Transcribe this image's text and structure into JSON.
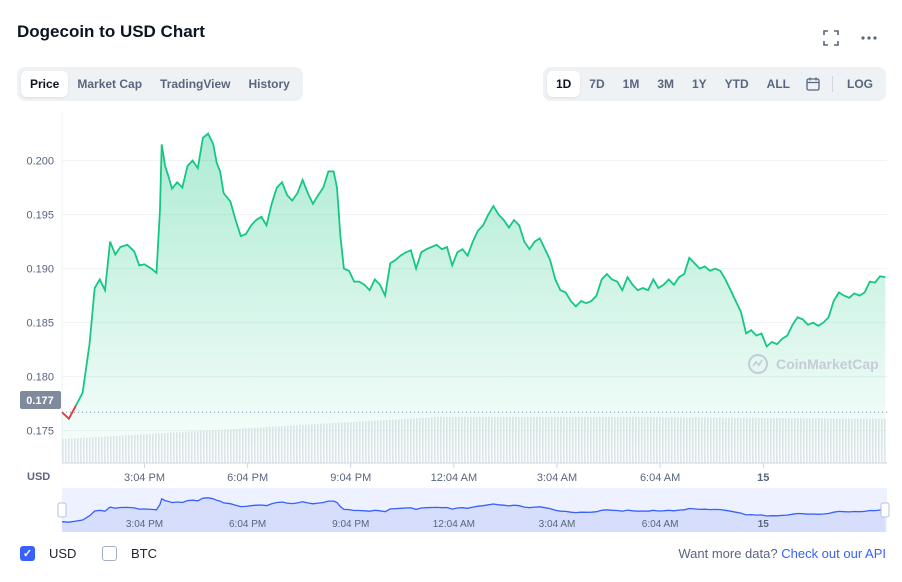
{
  "title": "Dogecoin to USD Chart",
  "icons": {
    "fullscreen": "fullscreen-icon",
    "more": "more-icon",
    "calendar": "calendar-icon"
  },
  "left_tabs": [
    {
      "label": "Price",
      "active": true
    },
    {
      "label": "Market Cap",
      "active": false
    },
    {
      "label": "TradingView",
      "active": false
    },
    {
      "label": "History",
      "active": false
    }
  ],
  "range_tabs": [
    {
      "label": "1D",
      "active": true
    },
    {
      "label": "7D",
      "active": false
    },
    {
      "label": "1M",
      "active": false
    },
    {
      "label": "3M",
      "active": false
    },
    {
      "label": "1Y",
      "active": false
    },
    {
      "label": "YTD",
      "active": false
    },
    {
      "label": "ALL",
      "active": false
    }
  ],
  "log_label": "LOG",
  "watermark": "CoinMarketCap",
  "colors": {
    "line": "#16c784",
    "nav_line": "#3861fb",
    "accent": "#3861fb",
    "price_tag_bg": "#808a9d"
  },
  "chart_data": {
    "type": "area",
    "ylabel": "USD",
    "y_ticks": [
      "0.200",
      "0.195",
      "0.190",
      "0.185",
      "0.180",
      "0.175"
    ],
    "ylim": [
      0.172,
      0.2045
    ],
    "x_tick_labels": [
      "3:04 PM",
      "6:04 PM",
      "9:04 PM",
      "12:04 AM",
      "3:04 AM",
      "6:04 AM",
      "15"
    ],
    "x_tick_hours": [
      2,
      5,
      8,
      11,
      14,
      17,
      20
    ],
    "x_range_hours": [
      -0.4,
      23.6
    ],
    "current_price": "0.177",
    "grid": true,
    "series": [
      {
        "values": [
          [
            -0.4,
            0.1767
          ],
          [
            -0.2,
            0.1761
          ],
          [
            0.0,
            0.1773
          ],
          [
            0.2,
            0.1785
          ],
          [
            0.4,
            0.183
          ],
          [
            0.55,
            0.1882
          ],
          [
            0.7,
            0.189
          ],
          [
            0.85,
            0.188
          ],
          [
            1.0,
            0.1925
          ],
          [
            1.15,
            0.1913
          ],
          [
            1.3,
            0.192
          ],
          [
            1.5,
            0.1922
          ],
          [
            1.7,
            0.1916
          ],
          [
            1.85,
            0.1903
          ],
          [
            2.0,
            0.1904
          ],
          [
            2.2,
            0.19
          ],
          [
            2.35,
            0.1896
          ],
          [
            2.45,
            0.1955
          ],
          [
            2.5,
            0.2015
          ],
          [
            2.6,
            0.1995
          ],
          [
            2.7,
            0.1985
          ],
          [
            2.8,
            0.1974
          ],
          [
            2.95,
            0.198
          ],
          [
            3.1,
            0.1975
          ],
          [
            3.25,
            0.1995
          ],
          [
            3.4,
            0.2
          ],
          [
            3.55,
            0.1993
          ],
          [
            3.7,
            0.2021
          ],
          [
            3.85,
            0.2025
          ],
          [
            4.0,
            0.2015
          ],
          [
            4.1,
            0.1998
          ],
          [
            4.2,
            0.199
          ],
          [
            4.3,
            0.197
          ],
          [
            4.5,
            0.1962
          ],
          [
            4.65,
            0.1945
          ],
          [
            4.8,
            0.193
          ],
          [
            4.95,
            0.1932
          ],
          [
            5.1,
            0.194
          ],
          [
            5.25,
            0.1945
          ],
          [
            5.4,
            0.1948
          ],
          [
            5.55,
            0.194
          ],
          [
            5.7,
            0.196
          ],
          [
            5.85,
            0.1975
          ],
          [
            6.0,
            0.198
          ],
          [
            6.15,
            0.1968
          ],
          [
            6.3,
            0.1963
          ],
          [
            6.45,
            0.197
          ],
          [
            6.6,
            0.1982
          ],
          [
            6.75,
            0.197
          ],
          [
            6.9,
            0.196
          ],
          [
            7.05,
            0.1968
          ],
          [
            7.2,
            0.1975
          ],
          [
            7.35,
            0.199
          ],
          [
            7.5,
            0.199
          ],
          [
            7.6,
            0.1975
          ],
          [
            7.7,
            0.193
          ],
          [
            7.8,
            0.19
          ],
          [
            7.95,
            0.1898
          ],
          [
            8.1,
            0.1888
          ],
          [
            8.25,
            0.1888
          ],
          [
            8.4,
            0.1885
          ],
          [
            8.55,
            0.188
          ],
          [
            8.7,
            0.189
          ],
          [
            8.85,
            0.1885
          ],
          [
            9.0,
            0.1875
          ],
          [
            9.15,
            0.1905
          ],
          [
            9.3,
            0.1908
          ],
          [
            9.45,
            0.1912
          ],
          [
            9.6,
            0.1915
          ],
          [
            9.75,
            0.1917
          ],
          [
            9.9,
            0.19
          ],
          [
            10.05,
            0.1915
          ],
          [
            10.2,
            0.1918
          ],
          [
            10.35,
            0.192
          ],
          [
            10.5,
            0.1922
          ],
          [
            10.65,
            0.1918
          ],
          [
            10.8,
            0.192
          ],
          [
            10.95,
            0.1903
          ],
          [
            11.1,
            0.1915
          ],
          [
            11.25,
            0.1918
          ],
          [
            11.4,
            0.1912
          ],
          [
            11.55,
            0.1925
          ],
          [
            11.7,
            0.1935
          ],
          [
            11.85,
            0.194
          ],
          [
            12.0,
            0.195
          ],
          [
            12.15,
            0.1958
          ],
          [
            12.3,
            0.195
          ],
          [
            12.45,
            0.1945
          ],
          [
            12.6,
            0.1938
          ],
          [
            12.75,
            0.1945
          ],
          [
            12.9,
            0.194
          ],
          [
            13.05,
            0.1925
          ],
          [
            13.2,
            0.1918
          ],
          [
            13.35,
            0.1925
          ],
          [
            13.5,
            0.1928
          ],
          [
            13.65,
            0.1918
          ],
          [
            13.8,
            0.1908
          ],
          [
            13.95,
            0.189
          ],
          [
            14.1,
            0.188
          ],
          [
            14.25,
            0.1878
          ],
          [
            14.4,
            0.187
          ],
          [
            14.55,
            0.1865
          ],
          [
            14.7,
            0.187
          ],
          [
            14.85,
            0.1868
          ],
          [
            15.0,
            0.187
          ],
          [
            15.15,
            0.1875
          ],
          [
            15.3,
            0.189
          ],
          [
            15.45,
            0.1895
          ],
          [
            15.6,
            0.189
          ],
          [
            15.75,
            0.1888
          ],
          [
            15.9,
            0.188
          ],
          [
            16.05,
            0.1892
          ],
          [
            16.2,
            0.1885
          ],
          [
            16.35,
            0.188
          ],
          [
            16.5,
            0.1882
          ],
          [
            16.65,
            0.188
          ],
          [
            16.8,
            0.189
          ],
          [
            16.95,
            0.1882
          ],
          [
            17.1,
            0.1885
          ],
          [
            17.25,
            0.189
          ],
          [
            17.4,
            0.1885
          ],
          [
            17.55,
            0.1892
          ],
          [
            17.7,
            0.1895
          ],
          [
            17.85,
            0.191
          ],
          [
            18.0,
            0.1905
          ],
          [
            18.15,
            0.19
          ],
          [
            18.3,
            0.1902
          ],
          [
            18.45,
            0.1898
          ],
          [
            18.6,
            0.19
          ],
          [
            18.75,
            0.1898
          ],
          [
            18.9,
            0.189
          ],
          [
            19.05,
            0.188
          ],
          [
            19.2,
            0.187
          ],
          [
            19.35,
            0.186
          ],
          [
            19.5,
            0.184
          ],
          [
            19.65,
            0.1843
          ],
          [
            19.8,
            0.1838
          ],
          [
            19.95,
            0.184
          ],
          [
            20.1,
            0.1828
          ],
          [
            20.25,
            0.1832
          ],
          [
            20.4,
            0.183
          ],
          [
            20.55,
            0.1835
          ],
          [
            20.7,
            0.1838
          ],
          [
            20.85,
            0.1848
          ],
          [
            21.0,
            0.1855
          ],
          [
            21.15,
            0.1853
          ],
          [
            21.3,
            0.1848
          ],
          [
            21.45,
            0.185
          ],
          [
            21.6,
            0.1847
          ],
          [
            21.75,
            0.185
          ],
          [
            21.9,
            0.1855
          ],
          [
            22.05,
            0.187
          ],
          [
            22.2,
            0.1878
          ],
          [
            22.35,
            0.1875
          ],
          [
            22.5,
            0.1873
          ],
          [
            22.65,
            0.1877
          ],
          [
            22.8,
            0.1875
          ],
          [
            22.95,
            0.1878
          ],
          [
            23.1,
            0.1888
          ],
          [
            23.25,
            0.1887
          ],
          [
            23.4,
            0.1893
          ],
          [
            23.55,
            0.1892
          ]
        ]
      }
    ]
  },
  "footer": {
    "usd_label": "USD",
    "btc_label": "BTC",
    "api_prefix": "Want more data?",
    "api_link": "Check out our API"
  }
}
